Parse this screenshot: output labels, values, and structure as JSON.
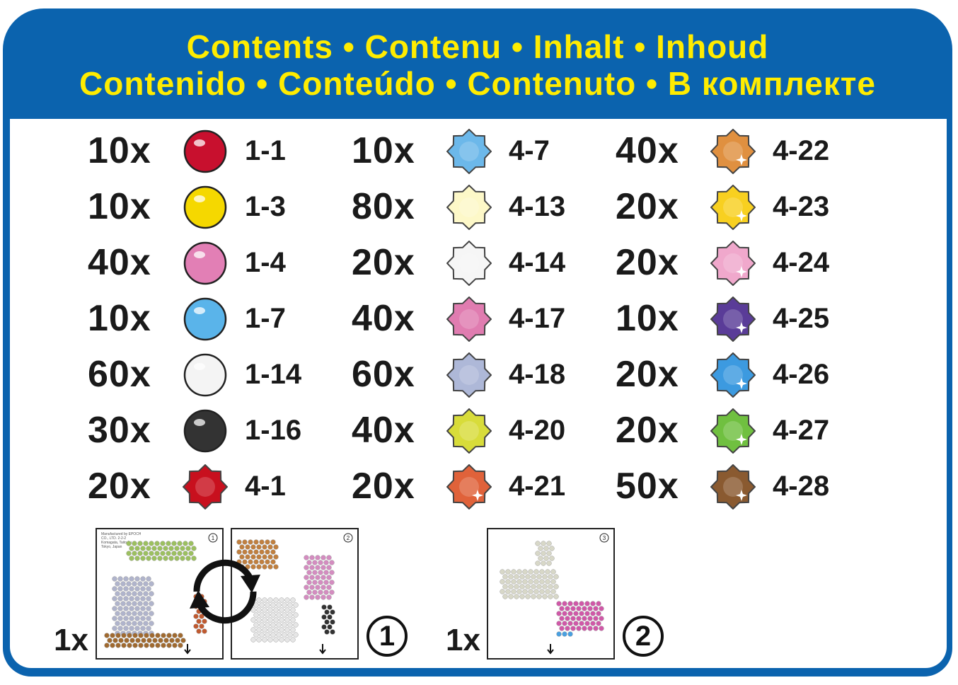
{
  "header": {
    "line1": "Contents • Contenu • Inhalt • Inhoud",
    "line2": "Contenido • Conteúdo • Contenuto • В комплекте"
  },
  "colors": {
    "frame": "#0b63ae",
    "title": "#ffec00"
  },
  "columns": [
    {
      "items": [
        {
          "count": "10x",
          "code": "1-1",
          "shape": "round",
          "color": "#c8102e"
        },
        {
          "count": "10x",
          "code": "1-3",
          "shape": "round",
          "color": "#f5d800"
        },
        {
          "count": "40x",
          "code": "1-4",
          "shape": "round",
          "color": "#e27fb5"
        },
        {
          "count": "10x",
          "code": "1-7",
          "shape": "round",
          "color": "#5ab4ea"
        },
        {
          "count": "60x",
          "code": "1-14",
          "shape": "round",
          "color": "#f4f4f4"
        },
        {
          "count": "30x",
          "code": "1-16",
          "shape": "round",
          "color": "#333333"
        },
        {
          "count": "20x",
          "code": "4-1",
          "shape": "star",
          "color": "#c8101e"
        }
      ]
    },
    {
      "items": [
        {
          "count": "10x",
          "code": "4-7",
          "shape": "star",
          "color": "#6cb8ea"
        },
        {
          "count": "80x",
          "code": "4-13",
          "shape": "star",
          "color": "#fdf8c8"
        },
        {
          "count": "20x",
          "code": "4-14",
          "shape": "star",
          "color": "#f6f6f6"
        },
        {
          "count": "40x",
          "code": "4-17",
          "shape": "star",
          "color": "#e07cb0"
        },
        {
          "count": "60x",
          "code": "4-18",
          "shape": "star",
          "color": "#aeb8d8"
        },
        {
          "count": "40x",
          "code": "4-20",
          "shape": "star",
          "color": "#d8dc3a"
        },
        {
          "count": "20x",
          "code": "4-21",
          "shape": "star-glitter",
          "color": "#e0623a"
        }
      ]
    },
    {
      "items": [
        {
          "count": "40x",
          "code": "4-22",
          "shape": "star-glitter",
          "color": "#e09040"
        },
        {
          "count": "20x",
          "code": "4-23",
          "shape": "star-glitter",
          "color": "#f8d020"
        },
        {
          "count": "20x",
          "code": "4-24",
          "shape": "star-glitter",
          "color": "#f0a8cc"
        },
        {
          "count": "10x",
          "code": "4-25",
          "shape": "star-glitter",
          "color": "#5a3c98"
        },
        {
          "count": "20x",
          "code": "4-26",
          "shape": "star-glitter",
          "color": "#3c9ae0"
        },
        {
          "count": "20x",
          "code": "4-27",
          "shape": "star-glitter",
          "color": "#70c040"
        },
        {
          "count": "50x",
          "code": "4-28",
          "shape": "star-glitter",
          "color": "#8a5a30"
        }
      ]
    }
  ],
  "templates": {
    "group1": {
      "qty": "1x",
      "label": "1",
      "sheets": [
        "1",
        "2"
      ],
      "icon": "rotate-arrows-icon",
      "manufacturer": "Manufactured by EPOCH CO., LTD. 2-2-2 Komagata, Taito-ku, Tokyo, Japan"
    },
    "group2": {
      "qty": "1x",
      "label": "2",
      "sheets": [
        "3"
      ]
    }
  }
}
